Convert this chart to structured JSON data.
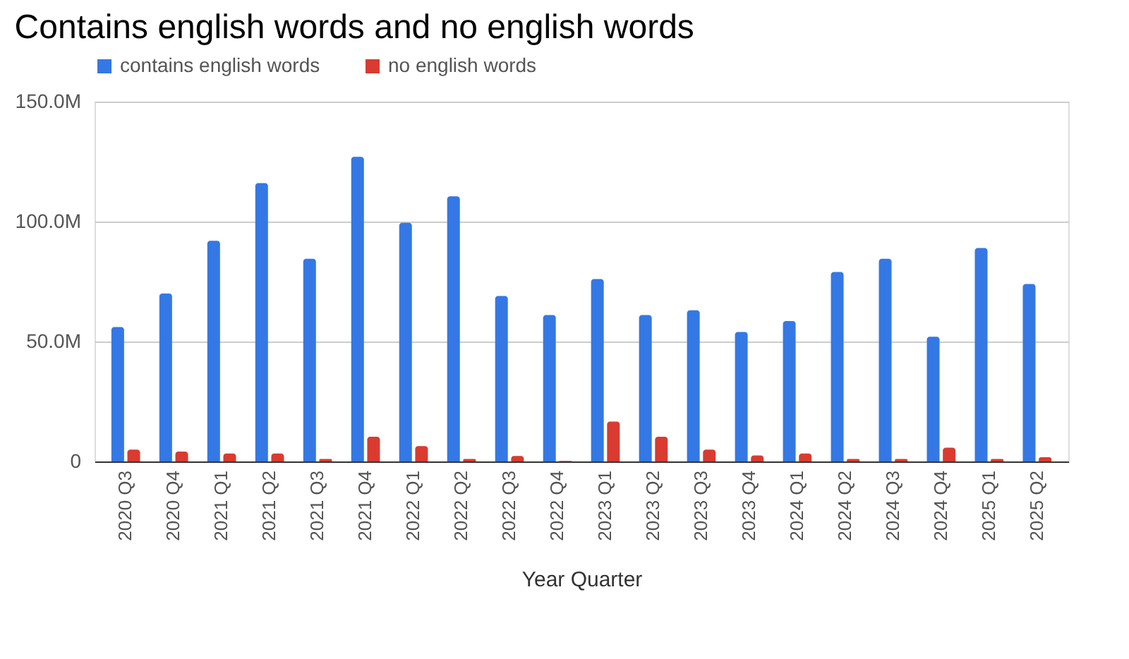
{
  "chart_data": {
    "type": "bar",
    "title": "Contains english words and no english words",
    "xlabel": "Year Quarter",
    "categories": [
      "2020 Q3",
      "2020 Q4",
      "2021 Q1",
      "2021 Q2",
      "2021 Q3",
      "2021 Q4",
      "2022 Q1",
      "2022 Q2",
      "2022 Q3",
      "2022 Q4",
      "2023 Q1",
      "2023 Q2",
      "2023 Q3",
      "2023 Q4",
      "2024 Q1",
      "2024 Q2",
      "2024 Q3",
      "2024 Q4",
      "2025 Q1",
      "2025 Q2"
    ],
    "series": [
      {
        "name": "contains english words",
        "color": "#3478e5",
        "values": [
          56,
          70,
          92,
          116,
          84.5,
          127,
          99.5,
          110.5,
          69,
          61,
          76,
          61,
          63,
          54,
          58.5,
          79,
          84.5,
          52,
          89,
          74
        ]
      },
      {
        "name": "no english words",
        "color": "#d93b30",
        "values": [
          4.9,
          4.1,
          3.3,
          3.3,
          1,
          10.3,
          6.4,
          1,
          2.3,
          0.2,
          16.6,
          10.3,
          4.9,
          2.5,
          3.3,
          1,
          1,
          5.7,
          1,
          1.8
        ]
      }
    ],
    "ylim": [
      0,
      150
    ],
    "yticks": [
      {
        "value": 0,
        "label": "0"
      },
      {
        "value": 50,
        "label": "50.0M"
      },
      {
        "value": 100,
        "label": "100.0M"
      },
      {
        "value": 150,
        "label": "150.0M"
      }
    ],
    "grid": "y",
    "legend": "top"
  }
}
